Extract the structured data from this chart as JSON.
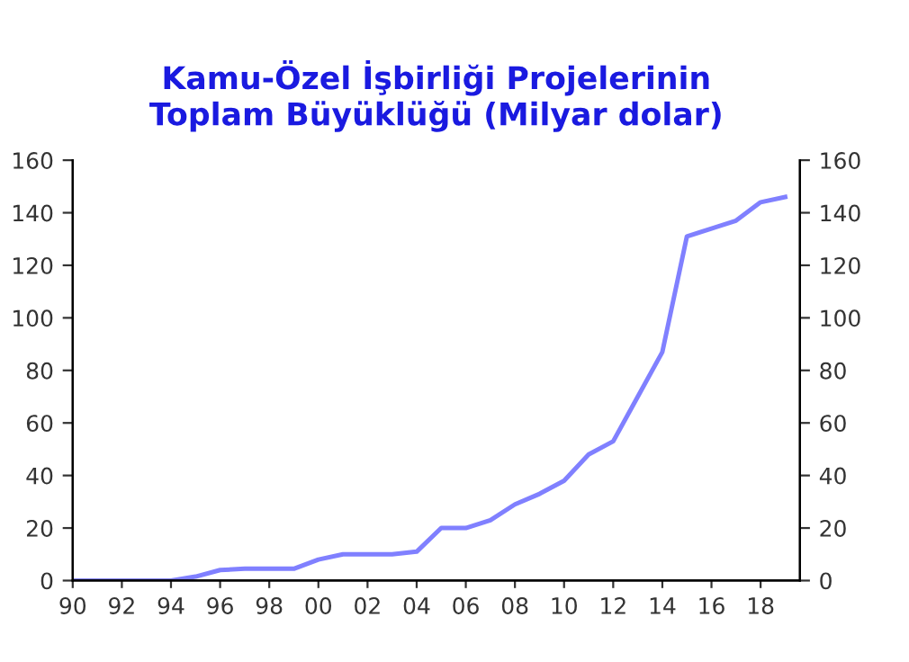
{
  "chart_data": {
    "type": "line",
    "title": "Kamu-Özel İşbirliği Projelerinin\nToplam Büyüklüğü (Milyar dolar)",
    "x": [
      1990,
      1991,
      1992,
      1993,
      1994,
      1995,
      1996,
      1997,
      1998,
      1999,
      2000,
      2001,
      2002,
      2003,
      2004,
      2005,
      2006,
      2007,
      2008,
      2009,
      2010,
      2011,
      2012,
      2013,
      2014,
      2015,
      2016,
      2017,
      2018,
      2019
    ],
    "series": [
      {
        "color": "#8080ff",
        "values": [
          0,
          0,
          0,
          0,
          0,
          1.5,
          4,
          4.5,
          4.5,
          4.5,
          8,
          10,
          10,
          10,
          11,
          20,
          20,
          23,
          29,
          33,
          38,
          48,
          53,
          70,
          87,
          131,
          134,
          137,
          144,
          146
        ]
      }
    ],
    "xlim": [
      1990,
      2019.6
    ],
    "xticks": [
      {
        "value": 1990,
        "label": "90"
      },
      {
        "value": 1992,
        "label": "92"
      },
      {
        "value": 1994,
        "label": "94"
      },
      {
        "value": 1996,
        "label": "96"
      },
      {
        "value": 1998,
        "label": "98"
      },
      {
        "value": 2000,
        "label": "00"
      },
      {
        "value": 2002,
        "label": "02"
      },
      {
        "value": 2004,
        "label": "04"
      },
      {
        "value": 2006,
        "label": "06"
      },
      {
        "value": 2008,
        "label": "08"
      },
      {
        "value": 2010,
        "label": "10"
      },
      {
        "value": 2012,
        "label": "12"
      },
      {
        "value": 2014,
        "label": "14"
      },
      {
        "value": 2016,
        "label": "16"
      },
      {
        "value": 2018,
        "label": "18"
      }
    ],
    "ylim": [
      0,
      160
    ],
    "yticks": [
      0,
      20,
      40,
      60,
      80,
      100,
      120,
      140,
      160
    ],
    "y2lim": [
      0,
      160
    ],
    "y2ticks": [
      0,
      20,
      40,
      60,
      80,
      100,
      120,
      140,
      160
    ],
    "grid": false,
    "marker": "none",
    "line_style": "solid"
  }
}
